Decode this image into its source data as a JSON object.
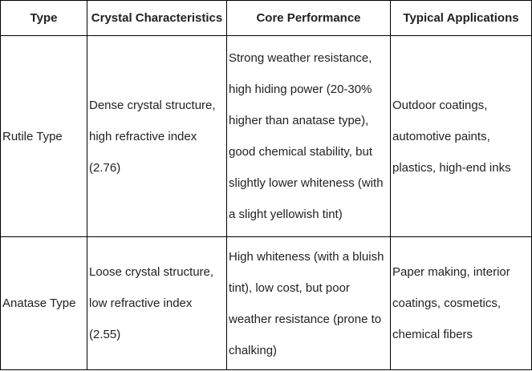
{
  "colors": {
    "border": "#000000",
    "text": "#222222",
    "background": "#ffffff"
  },
  "table": {
    "headers": {
      "type": "Type",
      "crystal_characteristics": "Crystal Characteristics",
      "core_performance": "Core Performance",
      "typical_applications": "Typical Applications"
    },
    "rows": [
      {
        "type": "Rutile Type",
        "crystal_characteristics": [
          "Dense crystal structure,",
          "high refractive index",
          "(2.76)"
        ],
        "core_performance": [
          "Strong weather resistance,",
          "high hiding power (20-30%",
          "higher than anatase type),",
          "good chemical stability, but",
          "slightly lower whiteness (with",
          "a slight yellowish tint)"
        ],
        "typical_applications": [
          "Outdoor coatings,",
          "automotive paints,",
          "plastics, high-end inks"
        ]
      },
      {
        "type": "Anatase Type",
        "crystal_characteristics": [
          "Loose crystal structure,",
          "low refractive index",
          "(2.55)"
        ],
        "core_performance": [
          "High whiteness (with a bluish",
          "tint), low cost, but poor",
          "weather resistance (prone to",
          "chalking)"
        ],
        "typical_applications": [
          "Paper making, interior",
          "coatings, cosmetics,",
          "chemical fibers"
        ]
      }
    ]
  }
}
